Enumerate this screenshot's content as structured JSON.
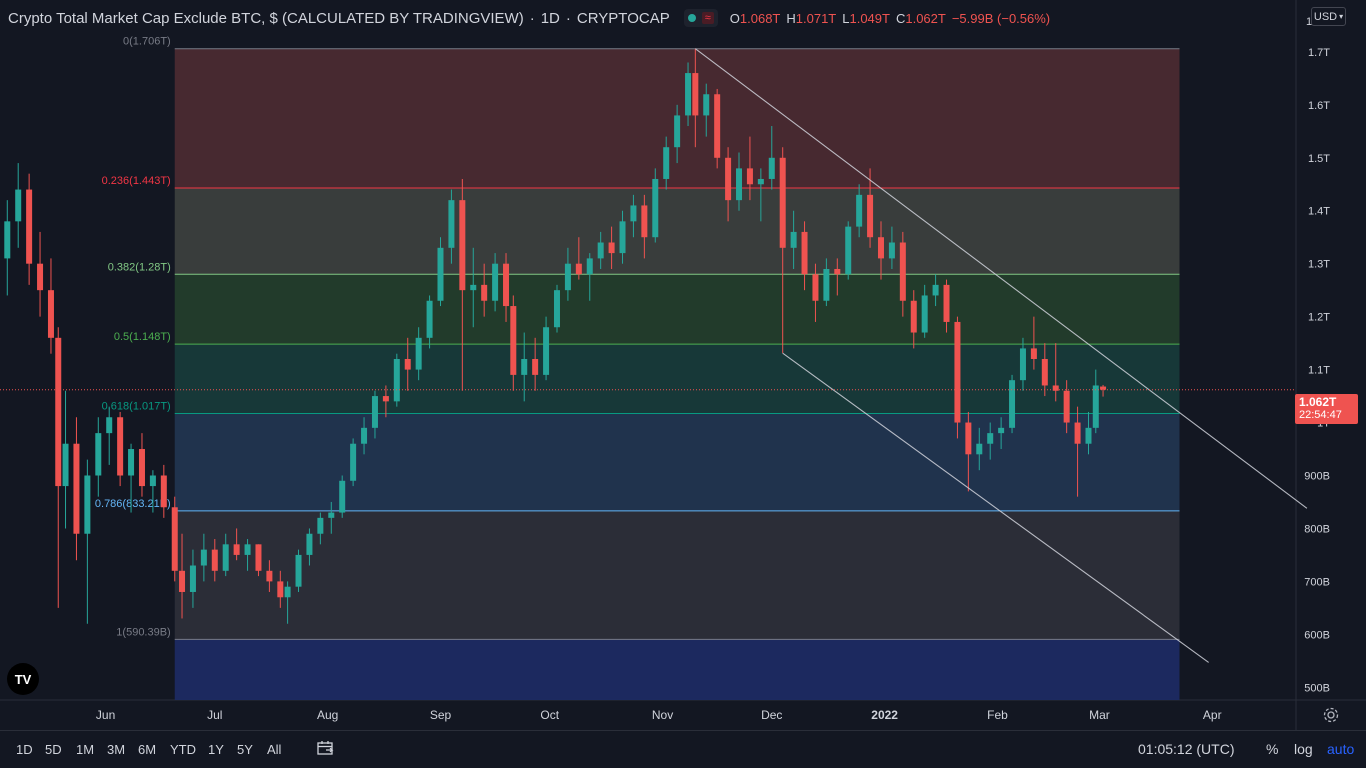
{
  "header": {
    "symbol_title": "Crypto Total Market Cap Exclude BTC, $ (CALCULATED BY TRADINGVIEW)",
    "interval": "1D",
    "exchange": "CRYPTOCAP",
    "ohlc": {
      "o_label": "O",
      "o": "1.068T",
      "h_label": "H",
      "h": "1.071T",
      "l_label": "L",
      "l": "1.049T",
      "c_label": "C",
      "c": "1.062T",
      "change": "−5.99B (−0.56%)"
    },
    "currency": "USD",
    "status_wave_icon": "≈"
  },
  "price_label": {
    "price": "1.062T",
    "countdown": "22:54:47"
  },
  "logo": {
    "text": "TV"
  },
  "bottom": {
    "ranges": [
      "1D",
      "5D",
      "1M",
      "3M",
      "6M",
      "YTD",
      "1Y",
      "5Y",
      "All"
    ],
    "time": "01:05:12 (UTC)",
    "percent": "%",
    "log": "log",
    "auto": "auto"
  },
  "colors": {
    "up": "#26a69a",
    "down": "#ef5350",
    "background": "#131722",
    "accent": "#2962ff"
  },
  "chart_data": {
    "type": "candlestick",
    "y_unit": "USD",
    "y_axis_ticks": [
      {
        "value": 500,
        "label": "500B"
      },
      {
        "value": 600,
        "label": "600B"
      },
      {
        "value": 700,
        "label": "700B"
      },
      {
        "value": 800,
        "label": "800B"
      },
      {
        "value": 900,
        "label": "900B"
      },
      {
        "value": 1000,
        "label": "1T"
      },
      {
        "value": 1100,
        "label": "1.1T"
      },
      {
        "value": 1200,
        "label": "1.2T"
      },
      {
        "value": 1300,
        "label": "1.3T"
      },
      {
        "value": 1400,
        "label": "1.4T"
      },
      {
        "value": 1500,
        "label": "1.5T"
      },
      {
        "value": 1600,
        "label": "1.6T"
      },
      {
        "value": 1700,
        "label": "1.7T"
      }
    ],
    "y_axis_top_label": "1",
    "ylim": [
      476,
      1798
    ],
    "x_axis_ticks": [
      {
        "date": "2021-06-01",
        "label": "Jun"
      },
      {
        "date": "2021-07-01",
        "label": "Jul"
      },
      {
        "date": "2021-08-01",
        "label": "Aug"
      },
      {
        "date": "2021-09-01",
        "label": "Sep"
      },
      {
        "date": "2021-10-01",
        "label": "Oct"
      },
      {
        "date": "2021-11-01",
        "label": "Nov"
      },
      {
        "date": "2021-12-01",
        "label": "Dec"
      },
      {
        "date": "2022-01-01",
        "label": "2022"
      },
      {
        "date": "2022-02-01",
        "label": "Feb"
      },
      {
        "date": "2022-03-01",
        "label": "Mar"
      },
      {
        "date": "2022-04-01",
        "label": "Apr"
      }
    ],
    "xlim": [
      "2021-05-03",
      "2022-04-24"
    ],
    "last_price": 1062,
    "fib_retracement": {
      "start_date": "2021-06-20",
      "end_date": "2022-03-23",
      "levels": [
        {
          "ratio": 0,
          "price": 1706,
          "label": "0(1.706T)",
          "color": "#787b86",
          "fill": "#4a2a31"
        },
        {
          "ratio": 0.236,
          "price": 1443,
          "label": "0.236(1.443T)",
          "color": "#f23645",
          "fill": "#3b3f3e"
        },
        {
          "ratio": 0.382,
          "price": 1280,
          "label": "0.382(1.28T)",
          "color": "#81c784",
          "fill": "#233d2c"
        },
        {
          "ratio": 0.5,
          "price": 1148,
          "label": "0.5(1.148T)",
          "color": "#4caf50",
          "fill": "#173a3a"
        },
        {
          "ratio": 0.618,
          "price": 1017,
          "label": "0.618(1.017T)",
          "color": "#089981",
          "fill": "#213550"
        },
        {
          "ratio": 0.786,
          "price": 833.21,
          "label": "0.786(833.21B)",
          "color": "#64b5f6",
          "fill": "#2c2e39"
        },
        {
          "ratio": 1,
          "price": 590.39,
          "label": "1(590.39B)",
          "color": "#787b86",
          "fill": "#1c2a63"
        }
      ]
    },
    "trend_lines": [
      {
        "name": "",
        "points": [
          {
            "date": "2021-11-10",
            "value": 1706
          },
          {
            "date": "2022-04-27",
            "value": 838
          }
        ]
      },
      {
        "name": "",
        "points": [
          {
            "date": "2021-12-04",
            "value": 1131
          },
          {
            "date": "2022-03-31",
            "value": 547
          }
        ]
      }
    ],
    "candles": [
      {
        "date": "2021-05-05",
        "o": 1310,
        "h": 1420,
        "l": 1240,
        "c": 1380
      },
      {
        "date": "2021-05-08",
        "o": 1380,
        "h": 1490,
        "l": 1330,
        "c": 1440
      },
      {
        "date": "2021-05-11",
        "o": 1440,
        "h": 1470,
        "l": 1260,
        "c": 1300
      },
      {
        "date": "2021-05-14",
        "o": 1300,
        "h": 1360,
        "l": 1200,
        "c": 1250
      },
      {
        "date": "2021-05-17",
        "o": 1250,
        "h": 1310,
        "l": 1130,
        "c": 1160
      },
      {
        "date": "2021-05-19",
        "o": 1160,
        "h": 1180,
        "l": 650,
        "c": 880
      },
      {
        "date": "2021-05-21",
        "o": 880,
        "h": 1060,
        "l": 800,
        "c": 960
      },
      {
        "date": "2021-05-24",
        "o": 960,
        "h": 1010,
        "l": 740,
        "c": 790
      },
      {
        "date": "2021-05-27",
        "o": 790,
        "h": 930,
        "l": 620,
        "c": 900
      },
      {
        "date": "2021-05-30",
        "o": 900,
        "h": 1010,
        "l": 860,
        "c": 980
      },
      {
        "date": "2021-06-02",
        "o": 980,
        "h": 1030,
        "l": 920,
        "c": 1010
      },
      {
        "date": "2021-06-05",
        "o": 1010,
        "h": 1020,
        "l": 880,
        "c": 900
      },
      {
        "date": "2021-06-08",
        "o": 900,
        "h": 960,
        "l": 830,
        "c": 950
      },
      {
        "date": "2021-06-11",
        "o": 950,
        "h": 980,
        "l": 860,
        "c": 880
      },
      {
        "date": "2021-06-14",
        "o": 880,
        "h": 910,
        "l": 830,
        "c": 900
      },
      {
        "date": "2021-06-17",
        "o": 900,
        "h": 920,
        "l": 820,
        "c": 840
      },
      {
        "date": "2021-06-20",
        "o": 840,
        "h": 860,
        "l": 700,
        "c": 720
      },
      {
        "date": "2021-06-22",
        "o": 720,
        "h": 790,
        "l": 630,
        "c": 680
      },
      {
        "date": "2021-06-25",
        "o": 680,
        "h": 760,
        "l": 650,
        "c": 730
      },
      {
        "date": "2021-06-28",
        "o": 730,
        "h": 790,
        "l": 700,
        "c": 760
      },
      {
        "date": "2021-07-01",
        "o": 760,
        "h": 780,
        "l": 700,
        "c": 720
      },
      {
        "date": "2021-07-04",
        "o": 720,
        "h": 790,
        "l": 710,
        "c": 770
      },
      {
        "date": "2021-07-07",
        "o": 770,
        "h": 800,
        "l": 740,
        "c": 750
      },
      {
        "date": "2021-07-10",
        "o": 750,
        "h": 780,
        "l": 720,
        "c": 770
      },
      {
        "date": "2021-07-13",
        "o": 770,
        "h": 770,
        "l": 710,
        "c": 720
      },
      {
        "date": "2021-07-16",
        "o": 720,
        "h": 740,
        "l": 680,
        "c": 700
      },
      {
        "date": "2021-07-19",
        "o": 700,
        "h": 720,
        "l": 650,
        "c": 670
      },
      {
        "date": "2021-07-21",
        "o": 670,
        "h": 700,
        "l": 620,
        "c": 690
      },
      {
        "date": "2021-07-24",
        "o": 690,
        "h": 760,
        "l": 680,
        "c": 750
      },
      {
        "date": "2021-07-27",
        "o": 750,
        "h": 800,
        "l": 730,
        "c": 790
      },
      {
        "date": "2021-07-30",
        "o": 790,
        "h": 830,
        "l": 770,
        "c": 820
      },
      {
        "date": "2021-08-02",
        "o": 820,
        "h": 850,
        "l": 790,
        "c": 830
      },
      {
        "date": "2021-08-05",
        "o": 830,
        "h": 900,
        "l": 820,
        "c": 890
      },
      {
        "date": "2021-08-08",
        "o": 890,
        "h": 970,
        "l": 880,
        "c": 960
      },
      {
        "date": "2021-08-11",
        "o": 960,
        "h": 1010,
        "l": 940,
        "c": 990
      },
      {
        "date": "2021-08-14",
        "o": 990,
        "h": 1060,
        "l": 970,
        "c": 1050
      },
      {
        "date": "2021-08-17",
        "o": 1050,
        "h": 1070,
        "l": 1010,
        "c": 1040
      },
      {
        "date": "2021-08-20",
        "o": 1040,
        "h": 1130,
        "l": 1030,
        "c": 1120
      },
      {
        "date": "2021-08-23",
        "o": 1120,
        "h": 1160,
        "l": 1060,
        "c": 1100
      },
      {
        "date": "2021-08-26",
        "o": 1100,
        "h": 1180,
        "l": 1080,
        "c": 1160
      },
      {
        "date": "2021-08-29",
        "o": 1160,
        "h": 1240,
        "l": 1140,
        "c": 1230
      },
      {
        "date": "2021-09-01",
        "o": 1230,
        "h": 1350,
        "l": 1220,
        "c": 1330
      },
      {
        "date": "2021-09-04",
        "o": 1330,
        "h": 1440,
        "l": 1300,
        "c": 1420
      },
      {
        "date": "2021-09-07",
        "o": 1420,
        "h": 1460,
        "l": 1060,
        "c": 1250
      },
      {
        "date": "2021-09-10",
        "o": 1250,
        "h": 1330,
        "l": 1180,
        "c": 1260
      },
      {
        "date": "2021-09-13",
        "o": 1260,
        "h": 1300,
        "l": 1200,
        "c": 1230
      },
      {
        "date": "2021-09-16",
        "o": 1230,
        "h": 1320,
        "l": 1210,
        "c": 1300
      },
      {
        "date": "2021-09-19",
        "o": 1300,
        "h": 1320,
        "l": 1190,
        "c": 1220
      },
      {
        "date": "2021-09-21",
        "o": 1220,
        "h": 1240,
        "l": 1060,
        "c": 1090
      },
      {
        "date": "2021-09-24",
        "o": 1090,
        "h": 1170,
        "l": 1040,
        "c": 1120
      },
      {
        "date": "2021-09-27",
        "o": 1120,
        "h": 1160,
        "l": 1060,
        "c": 1090
      },
      {
        "date": "2021-09-30",
        "o": 1090,
        "h": 1200,
        "l": 1080,
        "c": 1180
      },
      {
        "date": "2021-10-03",
        "o": 1180,
        "h": 1260,
        "l": 1170,
        "c": 1250
      },
      {
        "date": "2021-10-06",
        "o": 1250,
        "h": 1330,
        "l": 1230,
        "c": 1300
      },
      {
        "date": "2021-10-09",
        "o": 1300,
        "h": 1350,
        "l": 1270,
        "c": 1280
      },
      {
        "date": "2021-10-12",
        "o": 1280,
        "h": 1320,
        "l": 1230,
        "c": 1310
      },
      {
        "date": "2021-10-15",
        "o": 1310,
        "h": 1360,
        "l": 1290,
        "c": 1340
      },
      {
        "date": "2021-10-18",
        "o": 1340,
        "h": 1370,
        "l": 1290,
        "c": 1320
      },
      {
        "date": "2021-10-21",
        "o": 1320,
        "h": 1400,
        "l": 1300,
        "c": 1380
      },
      {
        "date": "2021-10-24",
        "o": 1380,
        "h": 1430,
        "l": 1350,
        "c": 1410
      },
      {
        "date": "2021-10-27",
        "o": 1410,
        "h": 1430,
        "l": 1310,
        "c": 1350
      },
      {
        "date": "2021-10-30",
        "o": 1350,
        "h": 1480,
        "l": 1340,
        "c": 1460
      },
      {
        "date": "2021-11-02",
        "o": 1460,
        "h": 1540,
        "l": 1440,
        "c": 1520
      },
      {
        "date": "2021-11-05",
        "o": 1520,
        "h": 1600,
        "l": 1490,
        "c": 1580
      },
      {
        "date": "2021-11-08",
        "o": 1580,
        "h": 1680,
        "l": 1560,
        "c": 1660
      },
      {
        "date": "2021-11-10",
        "o": 1660,
        "h": 1706,
        "l": 1520,
        "c": 1580
      },
      {
        "date": "2021-11-13",
        "o": 1580,
        "h": 1640,
        "l": 1540,
        "c": 1620
      },
      {
        "date": "2021-11-16",
        "o": 1620,
        "h": 1630,
        "l": 1480,
        "c": 1500
      },
      {
        "date": "2021-11-19",
        "o": 1500,
        "h": 1520,
        "l": 1380,
        "c": 1420
      },
      {
        "date": "2021-11-22",
        "o": 1420,
        "h": 1510,
        "l": 1400,
        "c": 1480
      },
      {
        "date": "2021-11-25",
        "o": 1480,
        "h": 1540,
        "l": 1420,
        "c": 1450
      },
      {
        "date": "2021-11-28",
        "o": 1450,
        "h": 1480,
        "l": 1380,
        "c": 1460
      },
      {
        "date": "2021-12-01",
        "o": 1460,
        "h": 1560,
        "l": 1440,
        "c": 1500
      },
      {
        "date": "2021-12-04",
        "o": 1500,
        "h": 1520,
        "l": 1131,
        "c": 1330
      },
      {
        "date": "2021-12-07",
        "o": 1330,
        "h": 1400,
        "l": 1290,
        "c": 1360
      },
      {
        "date": "2021-12-10",
        "o": 1360,
        "h": 1380,
        "l": 1250,
        "c": 1280
      },
      {
        "date": "2021-12-13",
        "o": 1280,
        "h": 1300,
        "l": 1190,
        "c": 1230
      },
      {
        "date": "2021-12-16",
        "o": 1230,
        "h": 1310,
        "l": 1220,
        "c": 1290
      },
      {
        "date": "2021-12-19",
        "o": 1290,
        "h": 1310,
        "l": 1240,
        "c": 1280
      },
      {
        "date": "2021-12-22",
        "o": 1280,
        "h": 1380,
        "l": 1270,
        "c": 1370
      },
      {
        "date": "2021-12-25",
        "o": 1370,
        "h": 1450,
        "l": 1350,
        "c": 1430
      },
      {
        "date": "2021-12-28",
        "o": 1430,
        "h": 1480,
        "l": 1330,
        "c": 1350
      },
      {
        "date": "2021-12-31",
        "o": 1350,
        "h": 1380,
        "l": 1270,
        "c": 1310
      },
      {
        "date": "2022-01-03",
        "o": 1310,
        "h": 1370,
        "l": 1290,
        "c": 1340
      },
      {
        "date": "2022-01-06",
        "o": 1340,
        "h": 1360,
        "l": 1200,
        "c": 1230
      },
      {
        "date": "2022-01-09",
        "o": 1230,
        "h": 1250,
        "l": 1140,
        "c": 1170
      },
      {
        "date": "2022-01-12",
        "o": 1170,
        "h": 1260,
        "l": 1160,
        "c": 1240
      },
      {
        "date": "2022-01-15",
        "o": 1240,
        "h": 1280,
        "l": 1220,
        "c": 1260
      },
      {
        "date": "2022-01-18",
        "o": 1260,
        "h": 1270,
        "l": 1170,
        "c": 1190
      },
      {
        "date": "2022-01-21",
        "o": 1190,
        "h": 1200,
        "l": 970,
        "c": 1000
      },
      {
        "date": "2022-01-24",
        "o": 1000,
        "h": 1020,
        "l": 870,
        "c": 940
      },
      {
        "date": "2022-01-27",
        "o": 940,
        "h": 990,
        "l": 910,
        "c": 960
      },
      {
        "date": "2022-01-30",
        "o": 960,
        "h": 1000,
        "l": 930,
        "c": 980
      },
      {
        "date": "2022-02-02",
        "o": 980,
        "h": 1010,
        "l": 950,
        "c": 990
      },
      {
        "date": "2022-02-05",
        "o": 990,
        "h": 1090,
        "l": 980,
        "c": 1080
      },
      {
        "date": "2022-02-08",
        "o": 1080,
        "h": 1160,
        "l": 1060,
        "c": 1140
      },
      {
        "date": "2022-02-11",
        "o": 1140,
        "h": 1200,
        "l": 1100,
        "c": 1120
      },
      {
        "date": "2022-02-14",
        "o": 1120,
        "h": 1150,
        "l": 1050,
        "c": 1070
      },
      {
        "date": "2022-02-17",
        "o": 1070,
        "h": 1150,
        "l": 1040,
        "c": 1060
      },
      {
        "date": "2022-02-20",
        "o": 1060,
        "h": 1080,
        "l": 980,
        "c": 1000
      },
      {
        "date": "2022-02-23",
        "o": 1000,
        "h": 1030,
        "l": 860,
        "c": 960
      },
      {
        "date": "2022-02-26",
        "o": 960,
        "h": 1020,
        "l": 940,
        "c": 990
      },
      {
        "date": "2022-02-28",
        "o": 990,
        "h": 1100,
        "l": 980,
        "c": 1070
      },
      {
        "date": "2022-03-02",
        "o": 1068,
        "h": 1071,
        "l": 1049,
        "c": 1062
      }
    ]
  }
}
